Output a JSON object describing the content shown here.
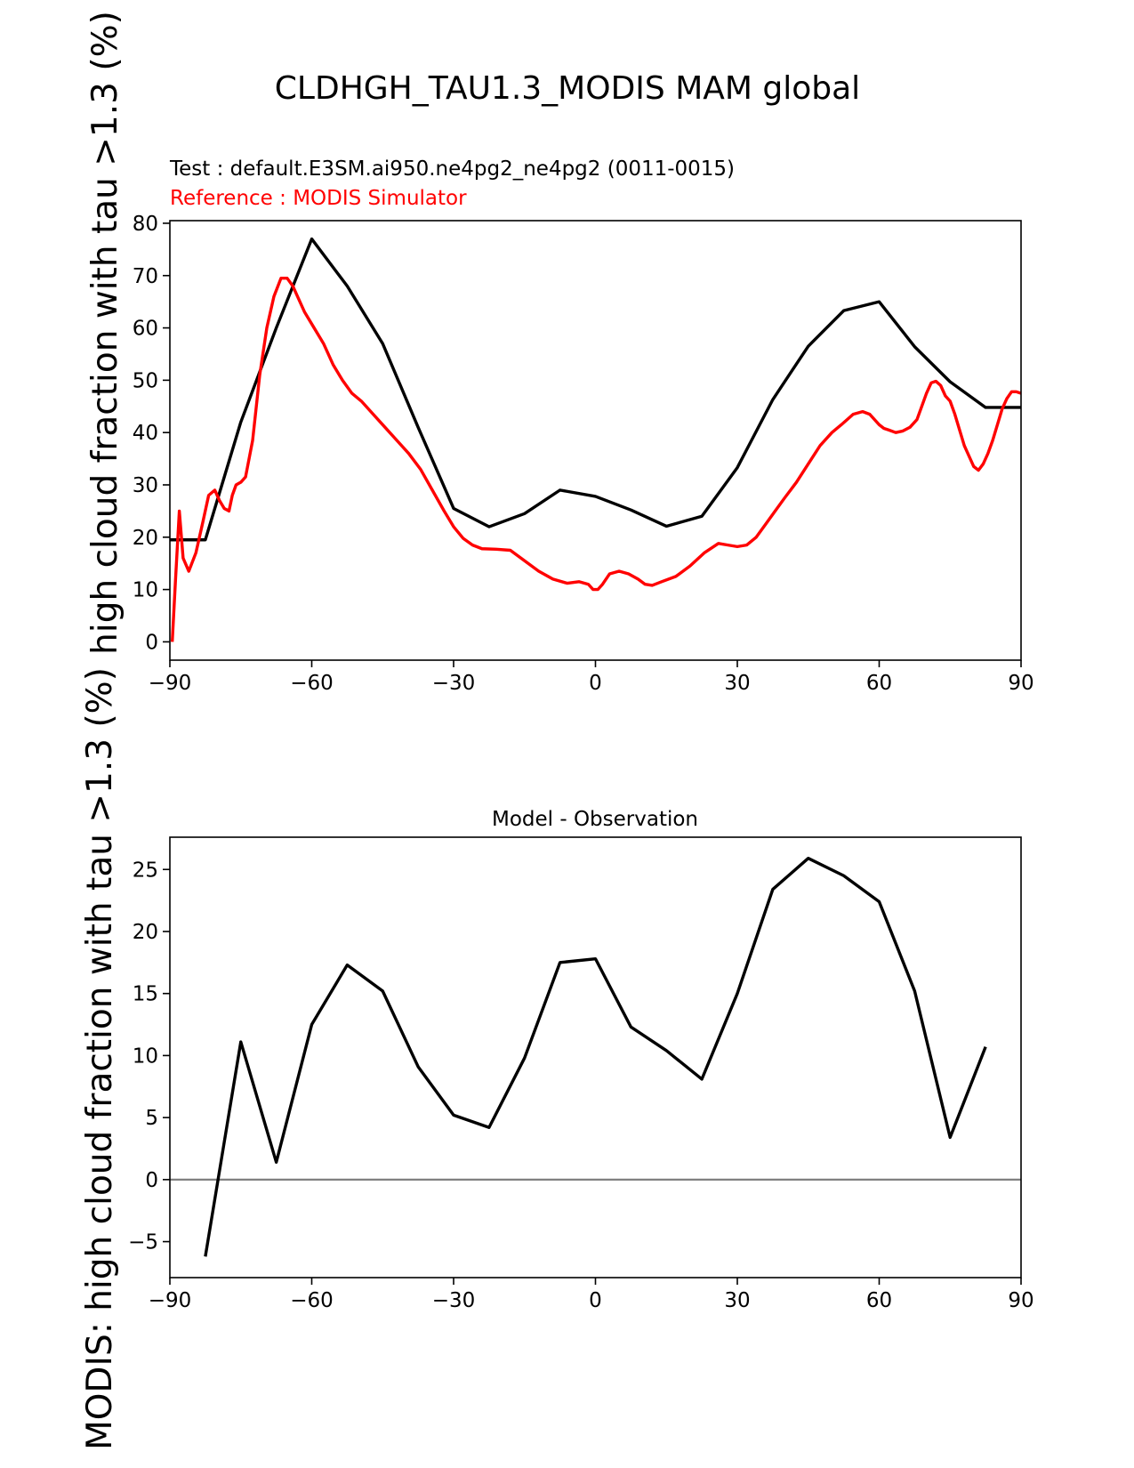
{
  "figure": {
    "title": "CLDHGH_TAU1.3_MODIS MAM global",
    "test_label": "Test : default.E3SM.ai950.ne4pg2_ne4pg2 (0011-0015)",
    "reference_label": "Reference : MODIS Simulator",
    "ylabel_main": "high cloud fraction with tau >1.3 (%)",
    "ylabel_diff": "MODIS: high cloud fraction with tau >1.3 (%)",
    "colors": {
      "test": "#000000",
      "reference": "#ff0000",
      "zero_line": "#808080"
    }
  },
  "chart_data": [
    {
      "type": "line",
      "title": "",
      "xlabel": "",
      "ylabel": "high cloud fraction with tau >1.3 (%)",
      "xlim": [
        -90,
        90
      ],
      "ylim": [
        -3.5,
        80.5
      ],
      "xticks": [
        -90,
        -60,
        -30,
        0,
        30,
        60,
        90
      ],
      "xtick_labels": [
        "−90",
        "−60",
        "−30",
        "0",
        "30",
        "60",
        "90"
      ],
      "yticks": [
        0,
        10,
        20,
        30,
        40,
        50,
        60,
        70,
        80
      ],
      "ytick_labels": [
        "0",
        "10",
        "20",
        "30",
        "40",
        "50",
        "60",
        "70",
        "80"
      ],
      "series": [
        {
          "name": "Test : default.E3SM.ai950.ne4pg2_ne4pg2 (0011-0015)",
          "color": "#000000",
          "x": [
            -90,
            -82.5,
            -75,
            -67.5,
            -60,
            -52.5,
            -45,
            -37.5,
            -30,
            -22.5,
            -15,
            -7.5,
            0,
            7.5,
            15,
            22.5,
            30,
            37.5,
            45,
            52.5,
            60,
            67.5,
            75,
            82.5,
            90
          ],
          "y": [
            19.5,
            19.5,
            42,
            60,
            77,
            68,
            57,
            41,
            25.5,
            22,
            24.5,
            29,
            27.8,
            25.2,
            22.1,
            24,
            33.3,
            46.3,
            56.5,
            63.3,
            65,
            56.4,
            49.7,
            44.8,
            44.8
          ]
        },
        {
          "name": "Reference : MODIS Simulator",
          "color": "#ff0000",
          "x": [
            -89.5,
            -88.8,
            -88,
            -87.2,
            -86,
            -84.5,
            -83,
            -81.8,
            -80.5,
            -79.5,
            -78.5,
            -77.5,
            -76.8,
            -76,
            -75,
            -74,
            -72.5,
            -71,
            -69.5,
            -68,
            -66.5,
            -65.2,
            -64,
            -63,
            -61.5,
            -59.5,
            -57.5,
            -55.5,
            -53.5,
            -51.5,
            -49.5,
            -47,
            -44.5,
            -42,
            -39.5,
            -37,
            -34.5,
            -32,
            -30,
            -28,
            -26,
            -24,
            -21,
            -18,
            -15,
            -12,
            -9,
            -6,
            -3.5,
            -1.5,
            -0.5,
            0.5,
            1.5,
            3,
            5,
            7,
            9,
            10.5,
            12,
            14,
            17,
            20,
            23,
            26,
            28,
            30,
            32,
            34,
            36,
            38,
            40,
            42.5,
            45,
            47.5,
            50,
            52,
            54.5,
            56.5,
            58,
            59,
            60,
            61,
            62,
            63.5,
            65,
            66.5,
            68,
            69,
            70,
            71,
            72,
            73,
            74,
            75,
            76,
            77,
            78,
            79,
            80,
            81,
            82,
            83,
            84,
            85,
            86,
            87,
            88,
            89,
            90
          ],
          "y": [
            0,
            12,
            25,
            16,
            13.5,
            17,
            23,
            28,
            29,
            27,
            25.5,
            25,
            28,
            30,
            30.5,
            31.5,
            38.5,
            51,
            60,
            66,
            69.5,
            69.5,
            68,
            66,
            63,
            60,
            57,
            53,
            50,
            47.5,
            46,
            43.5,
            41,
            38.5,
            36,
            33,
            29,
            25,
            22,
            19.8,
            18.5,
            17.8,
            17.7,
            17.5,
            15.5,
            13.5,
            12,
            11.2,
            11.5,
            11,
            10,
            10,
            11,
            13,
            13.5,
            13,
            12,
            11,
            10.8,
            11.5,
            12.5,
            14.5,
            17,
            18.8,
            18.5,
            18.2,
            18.5,
            20,
            22.5,
            25,
            27.5,
            30.5,
            34,
            37.5,
            40,
            41.5,
            43.5,
            44,
            43.5,
            42.5,
            41.5,
            40.8,
            40.5,
            40,
            40.3,
            41,
            42.5,
            45,
            47.5,
            49.5,
            49.8,
            49,
            47,
            46,
            43.5,
            40.5,
            37.5,
            35.5,
            33.5,
            32.8,
            34,
            36,
            38.5,
            41.5,
            44.5,
            46.5,
            47.8,
            47.8,
            47.5
          ]
        }
      ]
    },
    {
      "type": "line",
      "title": "Model - Observation",
      "xlabel": "",
      "ylabel": "MODIS: high cloud fraction with tau >1.3 (%)",
      "xlim": [
        -90,
        90
      ],
      "ylim": [
        -7.9,
        27.6
      ],
      "xticks": [
        -90,
        -60,
        -30,
        0,
        30,
        60,
        90
      ],
      "xtick_labels": [
        "−90",
        "−60",
        "−30",
        "0",
        "30",
        "60",
        "90"
      ],
      "yticks": [
        -5,
        0,
        5,
        10,
        15,
        20,
        25
      ],
      "ytick_labels": [
        "−5",
        "0",
        "5",
        "10",
        "15",
        "20",
        "25"
      ],
      "zero_line": 0,
      "series": [
        {
          "name": "Model - Observation",
          "color": "#000000",
          "x": [
            -82.5,
            -75,
            -67.5,
            -60,
            -52.5,
            -45,
            -37.5,
            -30,
            -22.5,
            -15,
            -7.5,
            0,
            7.5,
            15,
            22.5,
            30,
            37.5,
            45,
            52.5,
            60,
            67.5,
            75,
            82.5
          ],
          "y": [
            -6.2,
            11.1,
            1.4,
            12.5,
            17.3,
            15.2,
            9.1,
            5.2,
            4.2,
            9.8,
            17.5,
            17.8,
            12.3,
            10.4,
            8.1,
            15,
            23.4,
            25.9,
            24.5,
            22.4,
            15.2,
            3.4,
            10.7
          ]
        }
      ]
    }
  ]
}
